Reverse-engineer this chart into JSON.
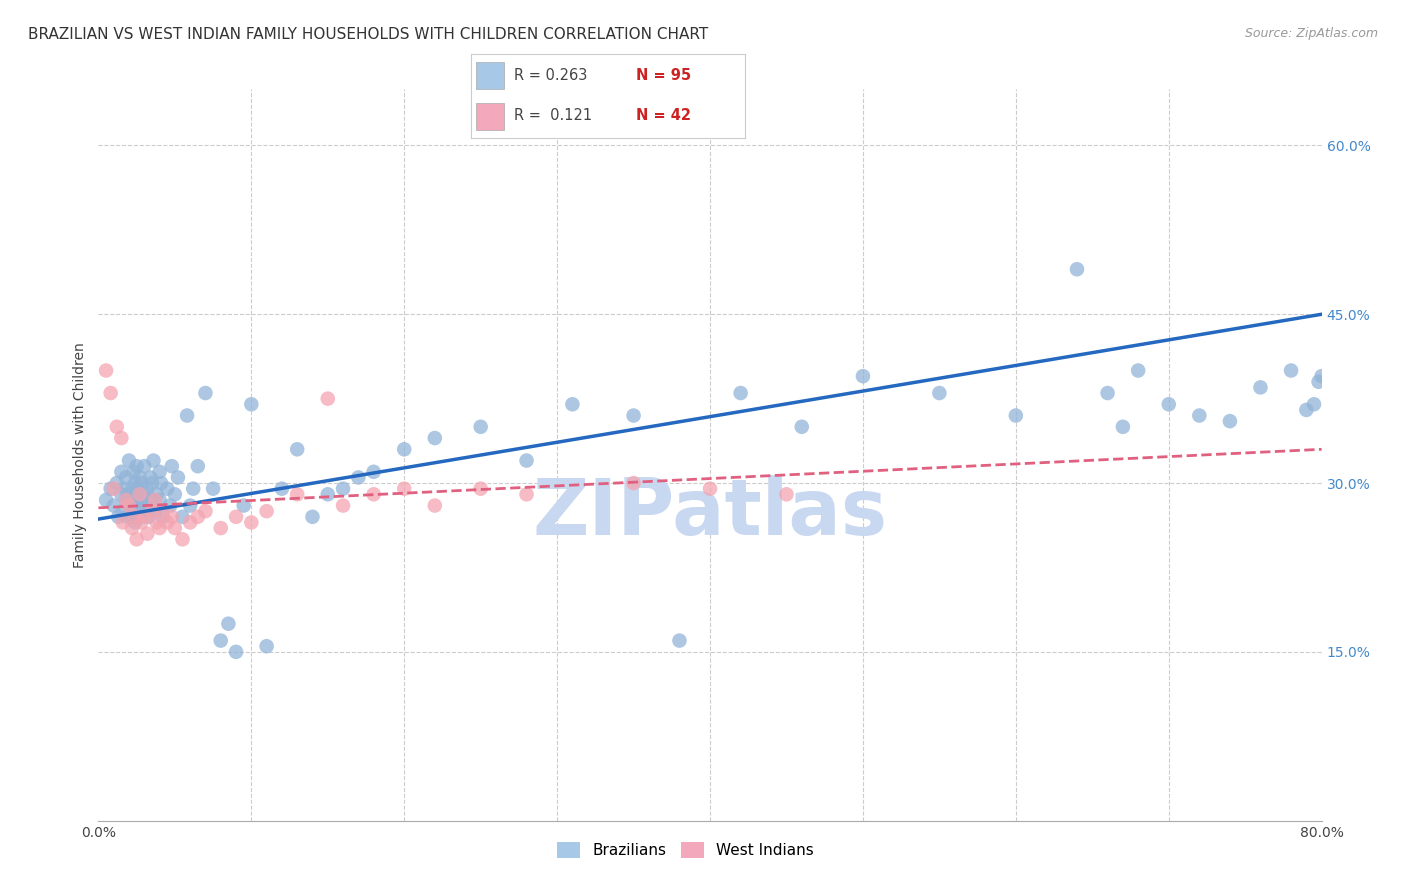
{
  "title": "BRAZILIAN VS WEST INDIAN FAMILY HOUSEHOLDS WITH CHILDREN CORRELATION CHART",
  "source": "Source: ZipAtlas.com",
  "ylabel": "Family Households with Children",
  "xlim": [
    0.0,
    0.8
  ],
  "ylim": [
    0.0,
    0.65
  ],
  "r_brazilian": 0.263,
  "n_brazilian": 95,
  "r_west_indian": 0.121,
  "n_west_indian": 42,
  "color_brazilian": "#92B4D8",
  "color_west_indian": "#F4A4B0",
  "color_line_brazilian": "#2468C0",
  "color_line_west_indian": "#E06080",
  "background_color": "#ffffff",
  "grid_color": "#cccccc",
  "title_fontsize": 11,
  "axis_label_fontsize": 10,
  "tick_fontsize": 10,
  "watermark": "ZIPatlas",
  "watermark_color": "#c8d8f0",
  "legend_color_blue": "#a8c8e8",
  "legend_color_pink": "#f4a8bc",
  "brazil_line_start_y": 0.268,
  "brazil_line_end_y": 0.45,
  "wi_line_start_y": 0.278,
  "wi_line_end_y": 0.33,
  "brazil_x": [
    0.005,
    0.008,
    0.01,
    0.012,
    0.013,
    0.015,
    0.015,
    0.016,
    0.017,
    0.018,
    0.018,
    0.019,
    0.02,
    0.02,
    0.021,
    0.022,
    0.022,
    0.023,
    0.023,
    0.024,
    0.024,
    0.025,
    0.025,
    0.026,
    0.026,
    0.027,
    0.027,
    0.028,
    0.028,
    0.029,
    0.03,
    0.03,
    0.031,
    0.032,
    0.033,
    0.034,
    0.035,
    0.035,
    0.036,
    0.037,
    0.038,
    0.04,
    0.04,
    0.041,
    0.042,
    0.045,
    0.047,
    0.048,
    0.05,
    0.052,
    0.055,
    0.058,
    0.06,
    0.062,
    0.065,
    0.07,
    0.075,
    0.08,
    0.085,
    0.09,
    0.095,
    0.1,
    0.11,
    0.12,
    0.13,
    0.14,
    0.15,
    0.16,
    0.17,
    0.18,
    0.2,
    0.22,
    0.25,
    0.28,
    0.31,
    0.35,
    0.38,
    0.42,
    0.46,
    0.5,
    0.55,
    0.6,
    0.64,
    0.66,
    0.67,
    0.68,
    0.7,
    0.72,
    0.74,
    0.76,
    0.78,
    0.79,
    0.795,
    0.798,
    0.8
  ],
  "brazil_y": [
    0.285,
    0.295,
    0.28,
    0.3,
    0.27,
    0.29,
    0.31,
    0.275,
    0.295,
    0.285,
    0.305,
    0.27,
    0.29,
    0.32,
    0.28,
    0.295,
    0.27,
    0.31,
    0.285,
    0.3,
    0.265,
    0.29,
    0.315,
    0.28,
    0.295,
    0.27,
    0.305,
    0.285,
    0.3,
    0.275,
    0.29,
    0.315,
    0.28,
    0.295,
    0.27,
    0.305,
    0.285,
    0.3,
    0.32,
    0.275,
    0.29,
    0.31,
    0.285,
    0.3,
    0.27,
    0.295,
    0.28,
    0.315,
    0.29,
    0.305,
    0.27,
    0.36,
    0.28,
    0.295,
    0.315,
    0.38,
    0.295,
    0.16,
    0.175,
    0.15,
    0.28,
    0.37,
    0.155,
    0.295,
    0.33,
    0.27,
    0.29,
    0.295,
    0.305,
    0.31,
    0.33,
    0.34,
    0.35,
    0.32,
    0.37,
    0.36,
    0.16,
    0.38,
    0.35,
    0.395,
    0.38,
    0.36,
    0.49,
    0.38,
    0.35,
    0.4,
    0.37,
    0.36,
    0.355,
    0.385,
    0.4,
    0.365,
    0.37,
    0.39,
    0.395
  ],
  "wi_x": [
    0.005,
    0.008,
    0.01,
    0.012,
    0.015,
    0.016,
    0.018,
    0.02,
    0.022,
    0.024,
    0.025,
    0.027,
    0.028,
    0.03,
    0.032,
    0.035,
    0.037,
    0.038,
    0.04,
    0.042,
    0.045,
    0.048,
    0.05,
    0.055,
    0.06,
    0.065,
    0.07,
    0.08,
    0.09,
    0.1,
    0.11,
    0.13,
    0.15,
    0.16,
    0.18,
    0.2,
    0.22,
    0.25,
    0.28,
    0.35,
    0.4,
    0.45
  ],
  "wi_y": [
    0.4,
    0.38,
    0.295,
    0.35,
    0.34,
    0.265,
    0.285,
    0.28,
    0.26,
    0.27,
    0.25,
    0.29,
    0.265,
    0.27,
    0.255,
    0.275,
    0.285,
    0.265,
    0.26,
    0.275,
    0.265,
    0.27,
    0.26,
    0.25,
    0.265,
    0.27,
    0.275,
    0.26,
    0.27,
    0.265,
    0.275,
    0.29,
    0.375,
    0.28,
    0.29,
    0.295,
    0.28,
    0.295,
    0.29,
    0.3,
    0.295,
    0.29
  ]
}
